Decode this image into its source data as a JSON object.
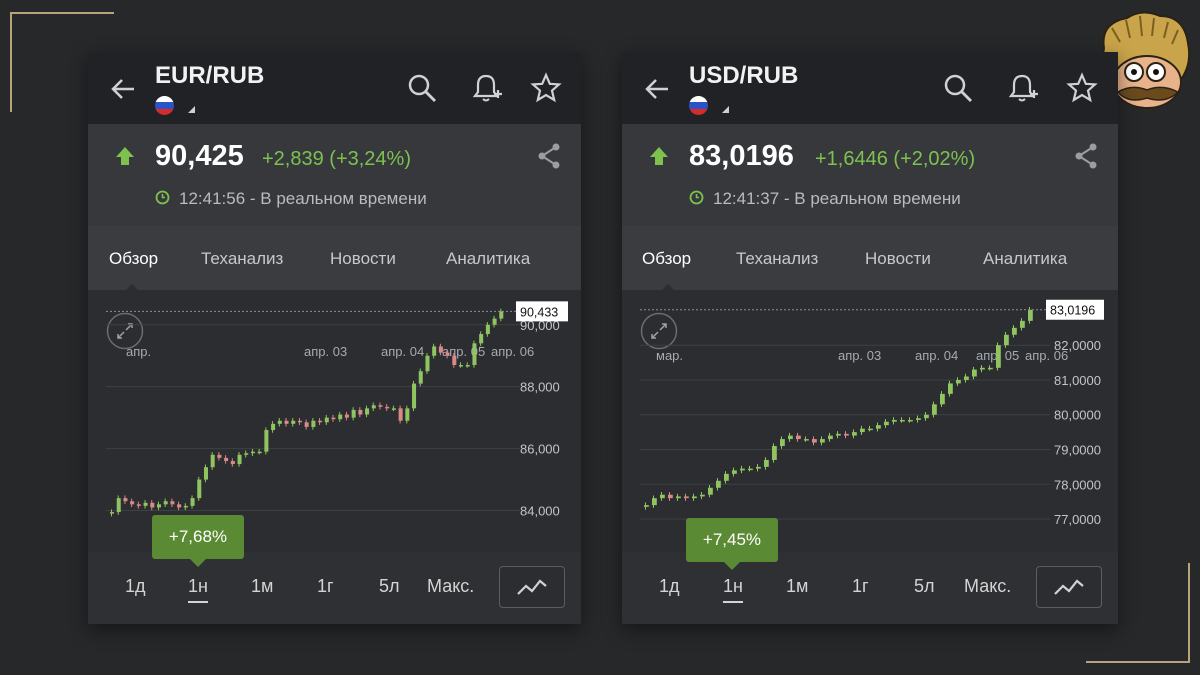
{
  "colors": {
    "bg": "#27282a",
    "gold": "#b8a47a",
    "up_green": "#7dc24f",
    "badge_green": "#5a8a33",
    "candle_up": "#8fc461",
    "candle_down": "#d98989"
  },
  "nav": {
    "back_icon": "arrow-left-icon",
    "search_icon": "search-icon",
    "alert_icon": "bell-plus-icon",
    "fav_icon": "star-icon",
    "share_icon": "share-icon"
  },
  "panels": [
    {
      "symbol": "EUR/RUB",
      "price": "90,425",
      "change": "+2,839 (+3,24%)",
      "time": "12:41:56 - В реальном времени",
      "tabs": [
        "Обзор",
        "Теханализ",
        "Новости",
        "Аналитика"
      ],
      "active_tab": "Обзор",
      "last_label": "90,433",
      "y_ticks": [
        "90,000",
        "88,000",
        "86,000",
        "84,000"
      ],
      "x_ticks": [
        "апр.",
        "апр. 03",
        "апр. 04",
        "апр. 05",
        "апр. 06"
      ],
      "change_badge": "+7,68%",
      "ranges": [
        "1д",
        "1н",
        "1м",
        "1г",
        "5л",
        "Макс."
      ],
      "selected_range": "1н",
      "chart_data": {
        "type": "candlestick",
        "ylim": [
          83500,
          90800
        ],
        "last": 90433,
        "close_path": [
          83950,
          84400,
          84300,
          84200,
          84150,
          84250,
          84100,
          84200,
          84300,
          84200,
          84100,
          84150,
          84400,
          85000,
          85400,
          85800,
          85700,
          85600,
          85500,
          85800,
          85850,
          85900,
          85900,
          86600,
          86800,
          86900,
          86800,
          86900,
          86850,
          86700,
          86900,
          86850,
          87000,
          86950,
          87100,
          87000,
          87250,
          87100,
          87300,
          87400,
          87350,
          87300,
          87300,
          86900,
          87300,
          88100,
          88500,
          89000,
          89300,
          89100,
          89000,
          88700,
          88700,
          88700,
          89400,
          89700,
          90000,
          90200,
          90433
        ]
      }
    },
    {
      "symbol": "USD/RUB",
      "price": "83,0196",
      "change": "+1,6446 (+2,02%)",
      "time": "12:41:37 - В реальном времени",
      "tabs": [
        "Обзор",
        "Теханализ",
        "Новости",
        "Аналитика"
      ],
      "active_tab": "Обзор",
      "last_label": "83,0196",
      "y_ticks": [
        "82,0000",
        "81,0000",
        "80,0000",
        "79,0000",
        "78,0000",
        "77,0000"
      ],
      "x_ticks": [
        "мар.",
        "апр. 03",
        "апр. 04",
        "апр. 05",
        "апр. 06"
      ],
      "change_badge": "+7,45%",
      "ranges": [
        "1д",
        "1н",
        "1м",
        "1г",
        "5л",
        "Макс."
      ],
      "selected_range": "1н",
      "chart_data": {
        "type": "candlestick",
        "ylim": [
          76800,
          83300
        ],
        "last": 83019.6,
        "close_path": [
          77400,
          77600,
          77700,
          77600,
          77650,
          77600,
          77650,
          77700,
          77900,
          78100,
          78300,
          78400,
          78450,
          78450,
          78500,
          78700,
          79100,
          79300,
          79400,
          79300,
          79300,
          79200,
          79300,
          79400,
          79450,
          79400,
          79500,
          79600,
          79600,
          79700,
          79800,
          79850,
          79850,
          79850,
          79900,
          80000,
          80300,
          80600,
          80900,
          81000,
          81100,
          81300,
          81350,
          81350,
          82000,
          82300,
          82500,
          82700,
          83019.6
        ]
      }
    }
  ]
}
